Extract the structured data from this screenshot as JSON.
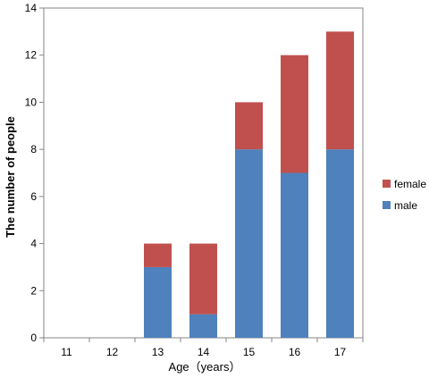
{
  "chart_data": {
    "type": "bar",
    "stacked": true,
    "categories": [
      "11",
      "12",
      "13",
      "14",
      "15",
      "16",
      "17"
    ],
    "series": [
      {
        "name": "male",
        "values": [
          0,
          0,
          3,
          1,
          8,
          7,
          8
        ],
        "color": "#4F81BD"
      },
      {
        "name": "female",
        "values": [
          0,
          0,
          1,
          3,
          2,
          5,
          5
        ],
        "color": "#C0504D"
      }
    ],
    "xlabel": "Age（years）",
    "ylabel": "The number of people",
    "ylim": [
      0,
      14
    ],
    "yticks": [
      0,
      2,
      4,
      6,
      8,
      10,
      12,
      14
    ],
    "grid": false,
    "legend_position": "right",
    "legend_order": [
      "female",
      "male"
    ]
  }
}
